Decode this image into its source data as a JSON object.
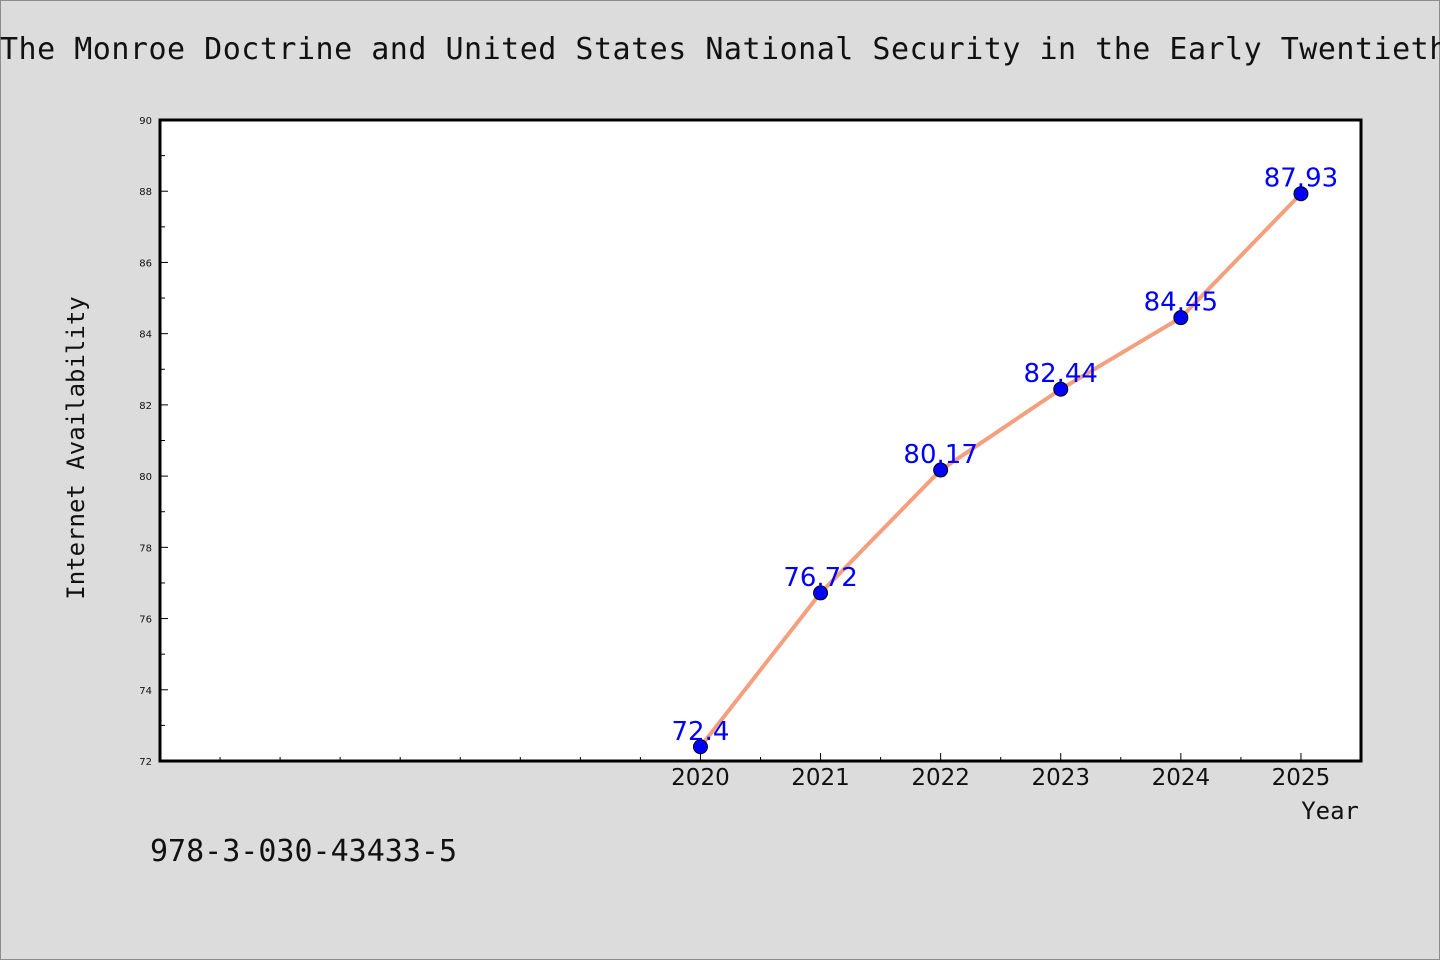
{
  "chart_data": {
    "type": "line",
    "title": "The Monroe Doctrine and United States National Security in the Early Twentieth C",
    "xlabel": "Year",
    "ylabel": "Internet Availability",
    "x": [
      2020,
      2021,
      2022,
      2023,
      2024,
      2025
    ],
    "x_tick_labels": [
      "2020",
      "2021",
      "2022",
      "2023",
      "2024",
      "2025"
    ],
    "series": [
      {
        "values": [
          72.4,
          76.72,
          80.17,
          82.44,
          84.45,
          87.93
        ],
        "data_labels": [
          "72.4",
          "76.72",
          "80.17",
          "82.44",
          "84.45",
          "87.93"
        ],
        "line_color": "#f4a07e",
        "marker_color": "#0000ff",
        "label_color": "#0000ff"
      }
    ],
    "xlim": [
      2015.5,
      2025.5
    ],
    "ylim": [
      72,
      90
    ],
    "y_ticks": [
      72,
      74,
      76,
      78,
      80,
      82,
      84,
      86,
      88,
      90
    ],
    "y_tick_labels": [
      "72",
      "74",
      "76",
      "78",
      "80",
      "82",
      "84",
      "86",
      "88",
      "90"
    ],
    "grid": false,
    "legend": "none"
  },
  "footer": {
    "isbn": "978-3-030-43433-5"
  }
}
